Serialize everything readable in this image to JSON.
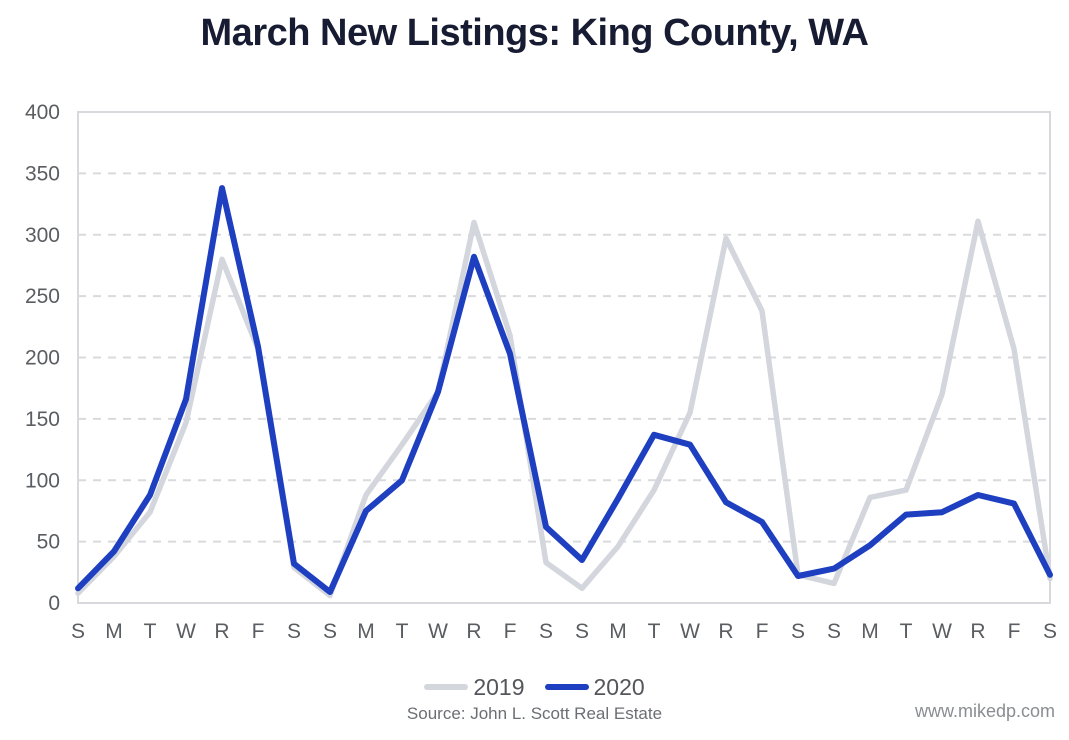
{
  "title": "March New Listings: King County, WA",
  "legend": {
    "items": [
      {
        "label": "2019"
      },
      {
        "label": "2020"
      }
    ]
  },
  "footer": {
    "source": "Source: John L. Scott Real Estate",
    "website": "www.mikedp.com"
  },
  "colors": {
    "title_text": "#171c33",
    "series_2019": "#d3d6dc",
    "series_2020": "#1d3fc0",
    "gridline": "#d9dade",
    "plot_border": "#d7d9dd",
    "tick_text": "#5a5d61"
  },
  "chart_data": {
    "type": "line",
    "title": "March New Listings: King County, WA",
    "xlabel": "",
    "ylabel": "",
    "ylim": [
      0,
      400
    ],
    "y_ticks": [
      0,
      50,
      100,
      150,
      200,
      250,
      300,
      350,
      400
    ],
    "grid": "horizontal-dashed",
    "legend_position": "bottom-center",
    "x_labels": [
      "S",
      "M",
      "T",
      "W",
      "R",
      "F",
      "S",
      "S",
      "M",
      "T",
      "W",
      "R",
      "F",
      "S",
      "S",
      "M",
      "T",
      "W",
      "R",
      "F",
      "S",
      "S",
      "M",
      "T",
      "W",
      "R",
      "F",
      "S"
    ],
    "series": [
      {
        "name": "2019",
        "color": "#d3d6dc",
        "stroke_width": 5.5,
        "values": [
          8,
          38,
          74,
          147,
          280,
          207,
          29,
          6,
          88,
          129,
          172,
          310,
          218,
          33,
          12,
          46,
          92,
          155,
          297,
          238,
          23,
          16,
          86,
          92,
          170,
          311,
          207,
          20
        ]
      },
      {
        "name": "2020",
        "color": "#1d3fc0",
        "stroke_width": 6,
        "values": [
          12,
          42,
          88,
          166,
          338,
          209,
          32,
          9,
          75,
          100,
          172,
          282,
          203,
          62,
          35,
          85,
          137,
          129,
          82,
          66,
          22,
          28,
          47,
          72,
          74,
          88,
          81,
          23
        ]
      }
    ]
  }
}
